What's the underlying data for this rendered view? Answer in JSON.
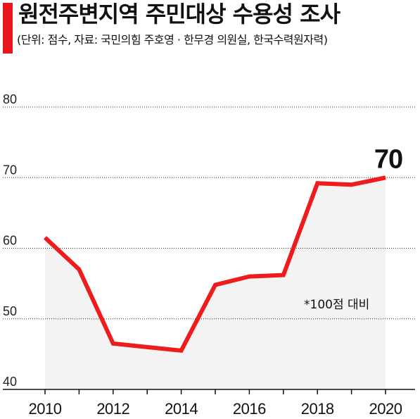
{
  "header": {
    "title": "원전주변지역 주민대상 수용성 조사",
    "subtitle": "(단위: 점수, 자료: 국민의힘 주호영 · 한무경 의원실, 한국수력원자력)"
  },
  "colors": {
    "accent": "#e8161b",
    "line": "#ee1c1c",
    "area": "#f3f3f3"
  },
  "chart_data": {
    "type": "line",
    "x": [
      2010,
      2011,
      2012,
      2013,
      2014,
      2015,
      2016,
      2017,
      2018,
      2019,
      2020
    ],
    "values": [
      61.5,
      57,
      46.5,
      46,
      45.5,
      54.8,
      56,
      56.2,
      69.2,
      69,
      70
    ],
    "x_tick_labels": [
      "2010",
      "2012",
      "2014",
      "2016",
      "2018",
      "2020"
    ],
    "y_tick_labels": [
      "40",
      "50",
      "60",
      "70",
      "80"
    ],
    "ylim": [
      40,
      80
    ],
    "xlim": [
      2010,
      2020
    ],
    "grid": "horizontal dotted",
    "end_label": "70",
    "note": "*100점 대비"
  }
}
